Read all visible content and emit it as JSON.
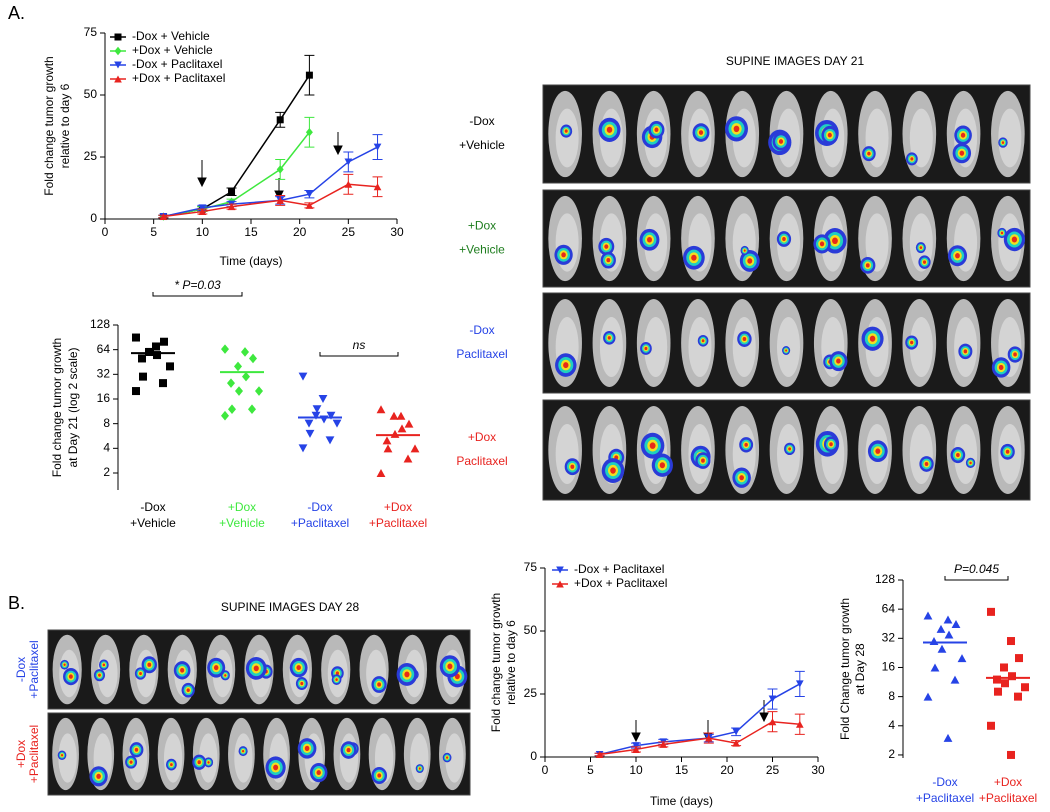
{
  "figure": {
    "panel_labels": [
      "A.",
      "B."
    ]
  },
  "images": [
    {
      "title": "SUPINE IMAGES DAY 21",
      "rows": [
        [
          "-Dox",
          "+Vehicle"
        ],
        [
          "+Dox",
          "+Vehicle"
        ],
        [
          "-Dox",
          "Paclitaxel"
        ],
        [
          "+Dox",
          "Paclitaxel"
        ]
      ],
      "row_colors": [
        "#000000",
        "#1e7d1e",
        "#2643e6",
        "#e8231f"
      ]
    },
    {
      "title": "SUPINE IMAGES DAY 28",
      "rows": [
        [
          "-Dox",
          "+Paclitaxel"
        ],
        [
          "+Dox",
          "+Paclitaxel"
        ]
      ],
      "row_colors": [
        "#2643e6",
        "#e8231f"
      ]
    }
  ],
  "chart_data": [
    {
      "type": "line",
      "xlabel": "Time (days)",
      "ylabel": [
        "Fold change tumor growth",
        "relative to day 6"
      ],
      "xlim": [
        0,
        30
      ],
      "xticks": [
        0,
        5,
        10,
        15,
        20,
        25,
        30
      ],
      "ylim": [
        0,
        75
      ],
      "yticks": [
        0,
        25,
        50,
        75
      ],
      "legend": "upper left",
      "series": [
        {
          "name": "-Dox + Vehicle",
          "color": "#000000",
          "marker": "square",
          "x": [
            6,
            10,
            13,
            18,
            21
          ],
          "values": [
            1,
            4,
            11,
            40,
            58
          ],
          "errors": [
            0.5,
            1,
            1.5,
            3,
            8
          ]
        },
        {
          "name": "+Dox + Vehicle",
          "color": "#3ee83e",
          "marker": "diamond",
          "x": [
            6,
            10,
            13,
            18,
            21
          ],
          "values": [
            1,
            4,
            7,
            20,
            35
          ],
          "errors": [
            0.5,
            1,
            1,
            4,
            6
          ]
        },
        {
          "name": "-Dox + Paclitaxel",
          "color": "#2643e6",
          "marker": "tri-down",
          "x": [
            6,
            10,
            13,
            18,
            21,
            25,
            28
          ],
          "values": [
            1,
            4.5,
            6,
            7.5,
            10,
            23,
            29
          ],
          "errors": [
            0.5,
            1,
            1,
            1.5,
            1.5,
            4,
            5
          ]
        },
        {
          "name": "+Dox + Paclitaxel",
          "color": "#e8231f",
          "marker": "tri-up",
          "x": [
            6,
            10,
            13,
            18,
            21,
            25,
            28
          ],
          "values": [
            1,
            3,
            5,
            7.5,
            5.5,
            14,
            13
          ],
          "errors": [
            0.5,
            1,
            1,
            2,
            1,
            4,
            4
          ]
        }
      ]
    },
    {
      "type": "strip",
      "ylabel": [
        "Fold change tumor growth",
        "at Day 21 (log 2 scale)"
      ],
      "log_base": 2,
      "ylim": [
        1.24,
        128
      ],
      "yticks": [
        2,
        4,
        8,
        16,
        32,
        64,
        128
      ],
      "categories": [
        [
          "-Dox",
          "+Vehicle"
        ],
        [
          "+Dox",
          "+Vehicle"
        ],
        [
          "-Dox",
          "+Paclitaxel"
        ],
        [
          "+Dox",
          "+Paclitaxel"
        ]
      ],
      "annotations": [
        "* P=0.03",
        "ns"
      ],
      "series": [
        {
          "color": "#000000",
          "marker": "square",
          "values": [
            90,
            70,
            80,
            60,
            55,
            50,
            60,
            40,
            30,
            25,
            20
          ],
          "mean": 58
        },
        {
          "color": "#3ee83e",
          "marker": "diamond",
          "values": [
            65,
            60,
            50,
            40,
            30,
            25,
            20,
            20,
            12,
            12,
            10
          ],
          "mean": 34
        },
        {
          "color": "#2643e6",
          "marker": "tri-down",
          "values": [
            30,
            16,
            10,
            10,
            9,
            8,
            12,
            8,
            6,
            5,
            4
          ],
          "mean": 9.5
        },
        {
          "color": "#e8231f",
          "marker": "tri-up",
          "values": [
            12,
            10,
            8,
            10,
            7,
            5,
            6,
            4,
            4,
            3,
            2
          ],
          "mean": 5.8
        }
      ]
    },
    {
      "type": "line",
      "xlabel": "Time (days)",
      "ylabel": [
        "Fold change tumor growth",
        "relative to day 6"
      ],
      "xlim": [
        0,
        30
      ],
      "xticks": [
        0,
        5,
        10,
        15,
        20,
        25,
        30
      ],
      "ylim": [
        0,
        75
      ],
      "yticks": [
        0,
        25,
        50,
        75
      ],
      "legend": "upper left",
      "series": [
        {
          "name": "-Dox + Paclitaxel",
          "color": "#2643e6",
          "marker": "tri-down",
          "x": [
            6,
            10,
            13,
            18,
            21,
            25,
            28
          ],
          "values": [
            1,
            4.5,
            6,
            7.5,
            10,
            23,
            29
          ],
          "errors": [
            0.5,
            1,
            1,
            1.5,
            1.5,
            4,
            5
          ]
        },
        {
          "name": "+Dox + Paclitaxel",
          "color": "#e8231f",
          "marker": "tri-up",
          "x": [
            6,
            10,
            13,
            18,
            21,
            25,
            28
          ],
          "values": [
            1,
            3,
            5,
            7.5,
            5.5,
            14,
            13
          ],
          "errors": [
            0.5,
            1,
            1,
            2,
            1,
            4,
            4
          ]
        }
      ]
    },
    {
      "type": "strip",
      "ylabel": [
        "Fold Change tumor growth",
        "at Day 28"
      ],
      "log_base": 2,
      "ylim": [
        1.86,
        128
      ],
      "yticks": [
        2,
        4,
        8,
        16,
        32,
        64,
        128
      ],
      "categories": [
        [
          "-Dox",
          "+Paclitaxel"
        ],
        [
          "+Dox",
          "+Paclitaxel"
        ]
      ],
      "annotations": [
        "P=0.045"
      ],
      "series": [
        {
          "color": "#2643e6",
          "marker": "tri-up",
          "values": [
            55,
            50,
            45,
            40,
            35,
            30,
            25,
            20,
            16,
            12,
            8,
            3
          ],
          "mean": 29
        },
        {
          "color": "#e8231f",
          "marker": "square",
          "values": [
            60,
            30,
            20,
            16,
            13,
            12,
            11,
            10,
            9,
            8,
            4,
            2
          ],
          "mean": 12.5
        }
      ]
    }
  ]
}
